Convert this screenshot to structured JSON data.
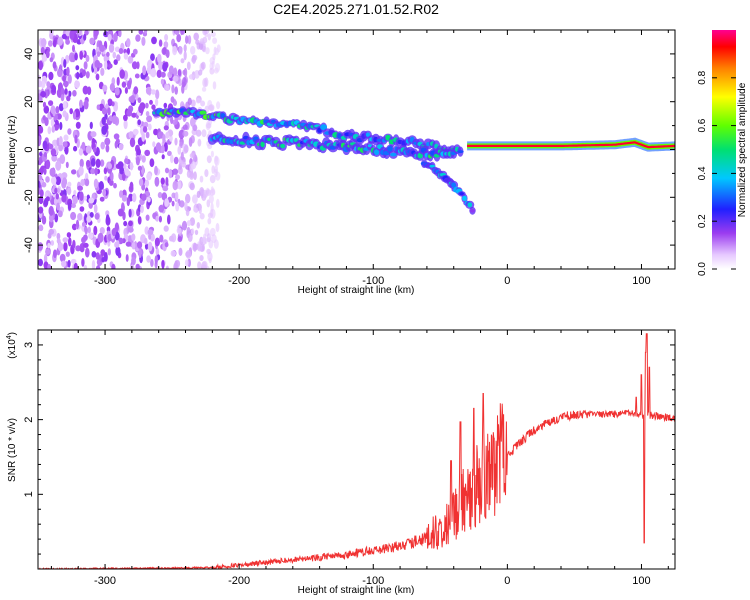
{
  "figure": {
    "title": "C2E4.2025.271.01.52.R02"
  },
  "chart_data": [
    {
      "type": "heatmap",
      "title": "C2E4.2025.271.01.52.R02",
      "xlabel": "Height of straight line (km)",
      "ylabel": "Frequency (Hz)",
      "xlim": [
        -350,
        125
      ],
      "ylim": [
        -50,
        50
      ],
      "xticks": [
        -300,
        -200,
        -100,
        0,
        100
      ],
      "yticks": [
        -40,
        -20,
        0,
        20,
        40
      ],
      "colorbar": {
        "label": "Normalized spectral amplitude",
        "range": [
          0,
          1
        ],
        "ticks": [
          "0.0",
          "0.2",
          "0.4",
          "0.6",
          "0.8"
        ],
        "colormap": "rainbow (white-purple-blue-cyan-green-yellow-red-magenta)"
      },
      "features": [
        {
          "name": "broadband noise",
          "x_range": [
            -350,
            -220
          ],
          "freq_range": [
            -50,
            50
          ],
          "amplitude": 0.1
        },
        {
          "name": "upper track",
          "points": [
            [
              -262,
              16
            ],
            [
              -230,
              15
            ],
            [
              -210,
              13
            ],
            [
              -180,
              11
            ],
            [
              -150,
              10
            ],
            [
              -120,
              6
            ],
            [
              -90,
              4
            ],
            [
              -60,
              2
            ],
            [
              -40,
              0
            ]
          ],
          "amplitude": 0.35
        },
        {
          "name": "lower track",
          "points": [
            [
              -220,
              5
            ],
            [
              -200,
              4
            ],
            [
              -170,
              3
            ],
            [
              -140,
              2
            ],
            [
              -110,
              1
            ],
            [
              -80,
              -1
            ],
            [
              -50,
              -2
            ],
            [
              -35,
              -1
            ]
          ],
          "amplitude": 0.3
        },
        {
          "name": "descending branch",
          "points": [
            [
              -60,
              -6
            ],
            [
              -45,
              -12
            ],
            [
              -35,
              -18
            ],
            [
              -25,
              -26
            ]
          ],
          "amplitude": 0.2
        },
        {
          "name": "carrier line",
          "points": [
            [
              -30,
              1.5
            ],
            [
              0,
              1.5
            ],
            [
              40,
              1.5
            ],
            [
              80,
              2
            ],
            [
              95,
              3
            ],
            [
              105,
              1
            ],
            [
              125,
              1.5
            ]
          ],
          "amplitude": 0.95
        }
      ]
    },
    {
      "type": "line",
      "xlabel": "Height of straight line (km)",
      "ylabel": "SNR (10 * v/v)",
      "y_scale_label": "(x10",
      "y_scale_exponent": "4",
      "xlim": [
        -350,
        125
      ],
      "ylim": [
        0,
        3.2
      ],
      "xticks": [
        -300,
        -200,
        -100,
        0,
        100
      ],
      "yticks": [
        1,
        2,
        3
      ],
      "color": "#f03232",
      "series": [
        {
          "name": "SNR",
          "x": [
            -350,
            -300,
            -250,
            -220,
            -200,
            -170,
            -140,
            -120,
            -100,
            -80,
            -60,
            -45,
            -35,
            -25,
            -18,
            -10,
            0,
            10,
            20,
            30,
            40,
            50,
            60,
            70,
            80,
            90,
            98,
            100,
            102,
            104,
            106,
            110,
            120,
            125
          ],
          "y": [
            0.0,
            0.005,
            0.01,
            0.02,
            0.05,
            0.1,
            0.15,
            0.18,
            0.25,
            0.3,
            0.4,
            0.55,
            0.8,
            1.05,
            1.15,
            1.3,
            1.5,
            1.7,
            1.85,
            1.95,
            2.03,
            2.06,
            2.07,
            2.07,
            2.07,
            2.08,
            2.05,
            2.1,
            2.0,
            2.1,
            2.05,
            2.05,
            2.02,
            2.0
          ],
          "peaks": [
            [
              -42,
              1.45
            ],
            [
              -35,
              1.97
            ],
            [
              -25,
              2.15
            ],
            [
              -18,
              2.35
            ],
            [
              -10,
              1.75
            ],
            [
              96,
              2.3
            ],
            [
              100,
              2.6
            ],
            [
              102,
              0.35
            ],
            [
              103,
              2.9
            ],
            [
              104,
              3.15
            ],
            [
              106,
              2.7
            ]
          ]
        }
      ]
    }
  ]
}
